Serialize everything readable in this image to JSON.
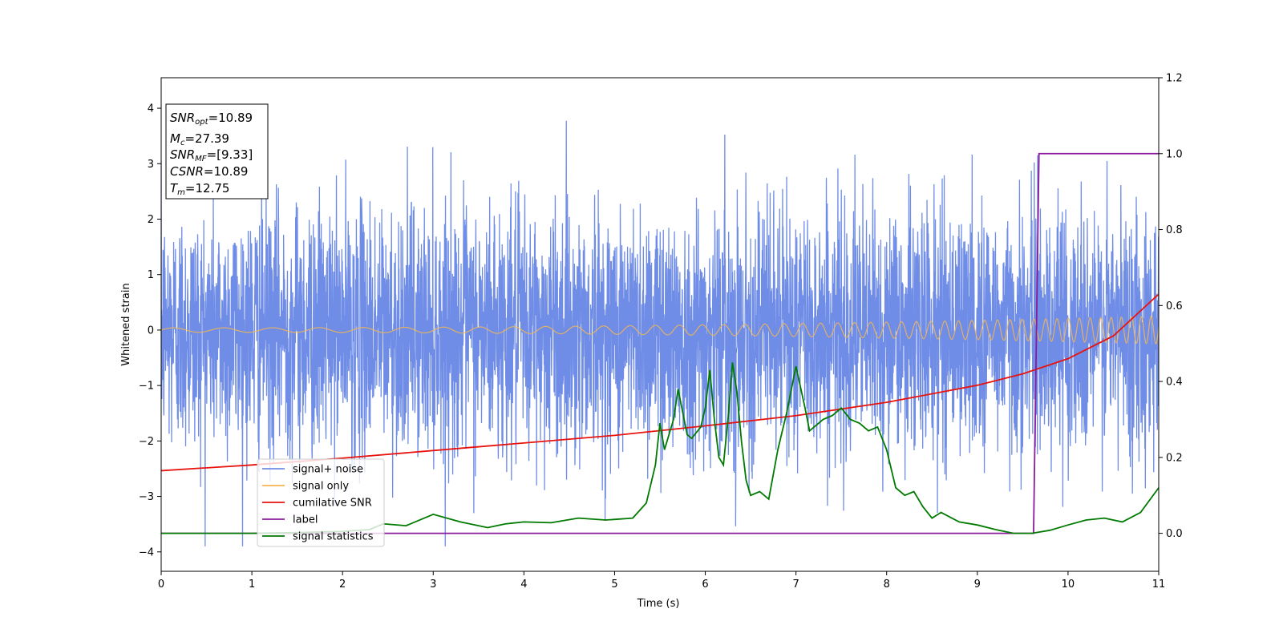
{
  "chart_data": {
    "type": "line",
    "xlabel": "Time (s)",
    "ylabel_left": "Whitened strain",
    "xlim": [
      0,
      11
    ],
    "ylim_left": [
      -4.35,
      4.55
    ],
    "ylim_right": [
      -0.1,
      1.2
    ],
    "xticks": [
      0,
      1,
      2,
      3,
      4,
      5,
      6,
      7,
      8,
      9,
      10,
      11
    ],
    "yticks_left": [
      -4,
      -3,
      -2,
      -1,
      0,
      1,
      2,
      3,
      4
    ],
    "yticks_right": [
      0.0,
      0.2,
      0.4,
      0.6,
      0.8,
      1.0,
      1.2
    ],
    "xtick_labels": [
      "0",
      "1",
      "2",
      "3",
      "4",
      "5",
      "6",
      "7",
      "8",
      "9",
      "10",
      "11"
    ],
    "ytick_labels_left": [
      "−4",
      "−3",
      "−2",
      "−1",
      "0",
      "1",
      "2",
      "3",
      "4"
    ],
    "ytick_labels_right": [
      "0.0",
      "0.2",
      "0.4",
      "0.6",
      "0.8",
      "1.0",
      "1.2"
    ],
    "legend_position": "lower-left",
    "grid": false,
    "series": [
      {
        "name": "signal+ noise",
        "color": "#6f8de6",
        "axis": "left",
        "kind": "noise",
        "sample_rate_hz": 400,
        "envelope": [
          -3.9,
          4.2
        ],
        "note_values": "dense white-noise trace, approx. std 1.1, peaks reach about +4.2 near t=5.35 and -3.9 near t=6.9"
      },
      {
        "name": "signal only",
        "color": "#f5b650",
        "axis": "left",
        "kind": "chirp",
        "amplitude_start": 0.04,
        "amplitude_end": 0.25,
        "freq_start_hz": 1.8,
        "freq_end_hz": 9.5
      },
      {
        "name": "cumilative SNR",
        "color": "#e8130f",
        "axis": "right",
        "x": [
          0,
          1,
          2,
          3,
          4,
          5,
          6,
          7,
          8,
          9,
          9.5,
          10,
          10.5,
          11
        ],
        "y": [
          0.165,
          0.18,
          0.198,
          0.218,
          0.238,
          0.258,
          0.283,
          0.31,
          0.345,
          0.39,
          0.42,
          0.46,
          0.52,
          0.63
        ]
      },
      {
        "name": "label",
        "color": "#8b1a9c",
        "axis": "right",
        "x": [
          0,
          9.62,
          9.68,
          11
        ],
        "y": [
          0,
          0,
          1,
          1
        ]
      },
      {
        "name": "signal statistics",
        "color": "#007a00",
        "axis": "right",
        "x": [
          0,
          0.5,
          1.0,
          1.5,
          2.0,
          2.3,
          2.45,
          2.7,
          3.0,
          3.3,
          3.6,
          3.8,
          4.0,
          4.3,
          4.6,
          4.9,
          5.2,
          5.35,
          5.45,
          5.5,
          5.55,
          5.6,
          5.65,
          5.7,
          5.75,
          5.8,
          5.85,
          5.95,
          6.0,
          6.05,
          6.1,
          6.15,
          6.2,
          6.25,
          6.3,
          6.35,
          6.4,
          6.45,
          6.5,
          6.6,
          6.7,
          6.8,
          6.9,
          7.0,
          7.1,
          7.15,
          7.2,
          7.3,
          7.4,
          7.5,
          7.6,
          7.7,
          7.8,
          7.9,
          8.0,
          8.1,
          8.2,
          8.3,
          8.4,
          8.5,
          8.6,
          8.8,
          9.0,
          9.2,
          9.4,
          9.6,
          9.8,
          10.0,
          10.2,
          10.4,
          10.6,
          10.8,
          11.0
        ],
        "y": [
          0.0,
          0.0,
          0.0,
          0.002,
          0.005,
          0.01,
          0.025,
          0.02,
          0.05,
          0.03,
          0.015,
          0.025,
          0.03,
          0.028,
          0.04,
          0.035,
          0.04,
          0.08,
          0.18,
          0.29,
          0.22,
          0.26,
          0.3,
          0.38,
          0.32,
          0.26,
          0.25,
          0.28,
          0.33,
          0.43,
          0.3,
          0.2,
          0.18,
          0.3,
          0.45,
          0.37,
          0.24,
          0.14,
          0.1,
          0.11,
          0.09,
          0.22,
          0.32,
          0.44,
          0.33,
          0.27,
          0.28,
          0.3,
          0.31,
          0.33,
          0.3,
          0.29,
          0.27,
          0.28,
          0.22,
          0.12,
          0.1,
          0.11,
          0.07,
          0.04,
          0.055,
          0.03,
          0.022,
          0.01,
          0.0,
          0.0,
          0.008,
          0.022,
          0.035,
          0.04,
          0.03,
          0.055,
          0.12
        ]
      }
    ]
  },
  "info_box": {
    "lines": [
      {
        "main": "SNR",
        "sub": "opt",
        "value": "=10.89"
      },
      {
        "main": "M",
        "sub": "c",
        "value": "=27.39"
      },
      {
        "main": "SNR",
        "sub": "MF",
        "value": "=[9.33]"
      },
      {
        "main": "CSNR",
        "sub": "",
        "value": "=10.89"
      },
      {
        "main": "T",
        "sub": "m",
        "value": "=12.75"
      }
    ]
  },
  "legend": {
    "entries": [
      {
        "label": "signal+ noise",
        "color": "#6f8de6"
      },
      {
        "label": "signal only",
        "color": "#f5b650"
      },
      {
        "label": "cumilative SNR",
        "color": "#e8130f"
      },
      {
        "label": "label",
        "color": "#8b1a9c"
      },
      {
        "label": "signal statistics",
        "color": "#007a00"
      }
    ]
  }
}
